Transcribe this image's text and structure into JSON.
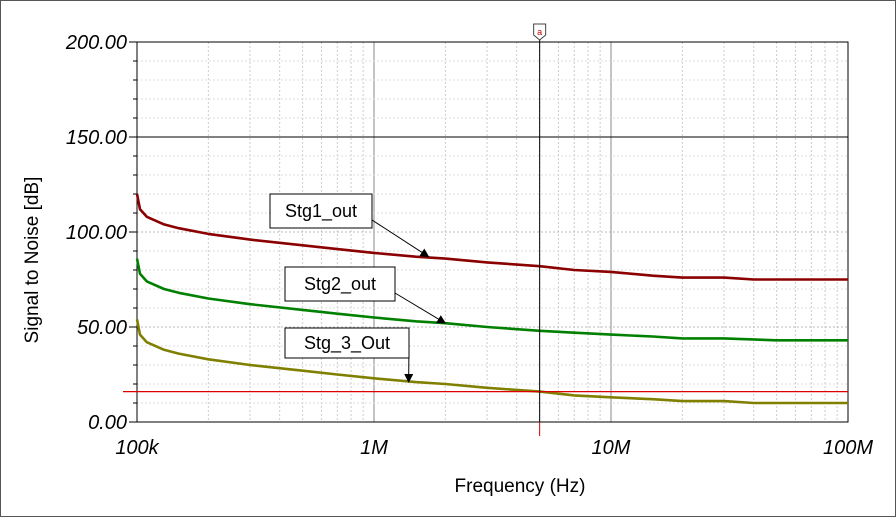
{
  "chart_data": {
    "type": "line",
    "xlabel": "Frequency (Hz)",
    "ylabel": "Signal to Noise [dB]",
    "x_scale": "log",
    "xlim": [
      100000,
      100000000
    ],
    "ylim": [
      0,
      200
    ],
    "x_ticks": [
      100000,
      1000000,
      10000000,
      100000000
    ],
    "x_tick_labels": [
      "100k",
      "1M",
      "10M",
      "100M"
    ],
    "y_ticks": [
      0,
      50,
      100,
      150,
      200
    ],
    "y_tick_labels": [
      "0.00",
      "50.00",
      "100.00",
      "150.00",
      "200.00"
    ],
    "grid": true,
    "cursor": {
      "label": "a",
      "x": 5000000,
      "color": "#cc0000"
    },
    "reference_line": {
      "y": 16,
      "color": "#dd0000"
    },
    "horizontal_line": {
      "y": 150,
      "color": "#000000"
    },
    "series": [
      {
        "name": "Stg1_out",
        "color": "#8b0000",
        "label_at_x": 1700000,
        "points": [
          [
            100000,
            120
          ],
          [
            103000,
            112
          ],
          [
            110000,
            108
          ],
          [
            130000,
            104
          ],
          [
            150000,
            102
          ],
          [
            200000,
            99
          ],
          [
            300000,
            96
          ],
          [
            500000,
            93
          ],
          [
            700000,
            91
          ],
          [
            1000000,
            89
          ],
          [
            1500000,
            87
          ],
          [
            2000000,
            86
          ],
          [
            3000000,
            84
          ],
          [
            5000000,
            82
          ],
          [
            7000000,
            80
          ],
          [
            10000000,
            79
          ],
          [
            15000000,
            77
          ],
          [
            20000000,
            76
          ],
          [
            30000000,
            76
          ],
          [
            40000000,
            75
          ],
          [
            50000000,
            75
          ],
          [
            100000000,
            75
          ]
        ]
      },
      {
        "name": "Stg2_out",
        "color": "#008000",
        "label_at_x": 2000000,
        "points": [
          [
            100000,
            86
          ],
          [
            103000,
            78
          ],
          [
            110000,
            74
          ],
          [
            130000,
            70
          ],
          [
            150000,
            68
          ],
          [
            200000,
            65
          ],
          [
            300000,
            62
          ],
          [
            500000,
            59
          ],
          [
            700000,
            57
          ],
          [
            1000000,
            55
          ],
          [
            1500000,
            53
          ],
          [
            2000000,
            52
          ],
          [
            3000000,
            50
          ],
          [
            5000000,
            48
          ],
          [
            7000000,
            47
          ],
          [
            10000000,
            46
          ],
          [
            15000000,
            45
          ],
          [
            20000000,
            44
          ],
          [
            30000000,
            44
          ],
          [
            50000000,
            43
          ],
          [
            100000000,
            43
          ]
        ]
      },
      {
        "name": "Stg_3_Out",
        "color": "#808000",
        "label_at_x": 1400000,
        "points": [
          [
            100000,
            54
          ],
          [
            103000,
            46
          ],
          [
            110000,
            42
          ],
          [
            130000,
            38
          ],
          [
            150000,
            36
          ],
          [
            200000,
            33
          ],
          [
            300000,
            30
          ],
          [
            500000,
            27
          ],
          [
            700000,
            25
          ],
          [
            1000000,
            23
          ],
          [
            1500000,
            21
          ],
          [
            2000000,
            20
          ],
          [
            3000000,
            18
          ],
          [
            5000000,
            16
          ],
          [
            7000000,
            14
          ],
          [
            10000000,
            13
          ],
          [
            15000000,
            12
          ],
          [
            20000000,
            11
          ],
          [
            30000000,
            11
          ],
          [
            40000000,
            10
          ],
          [
            100000000,
            10
          ]
        ]
      }
    ]
  }
}
